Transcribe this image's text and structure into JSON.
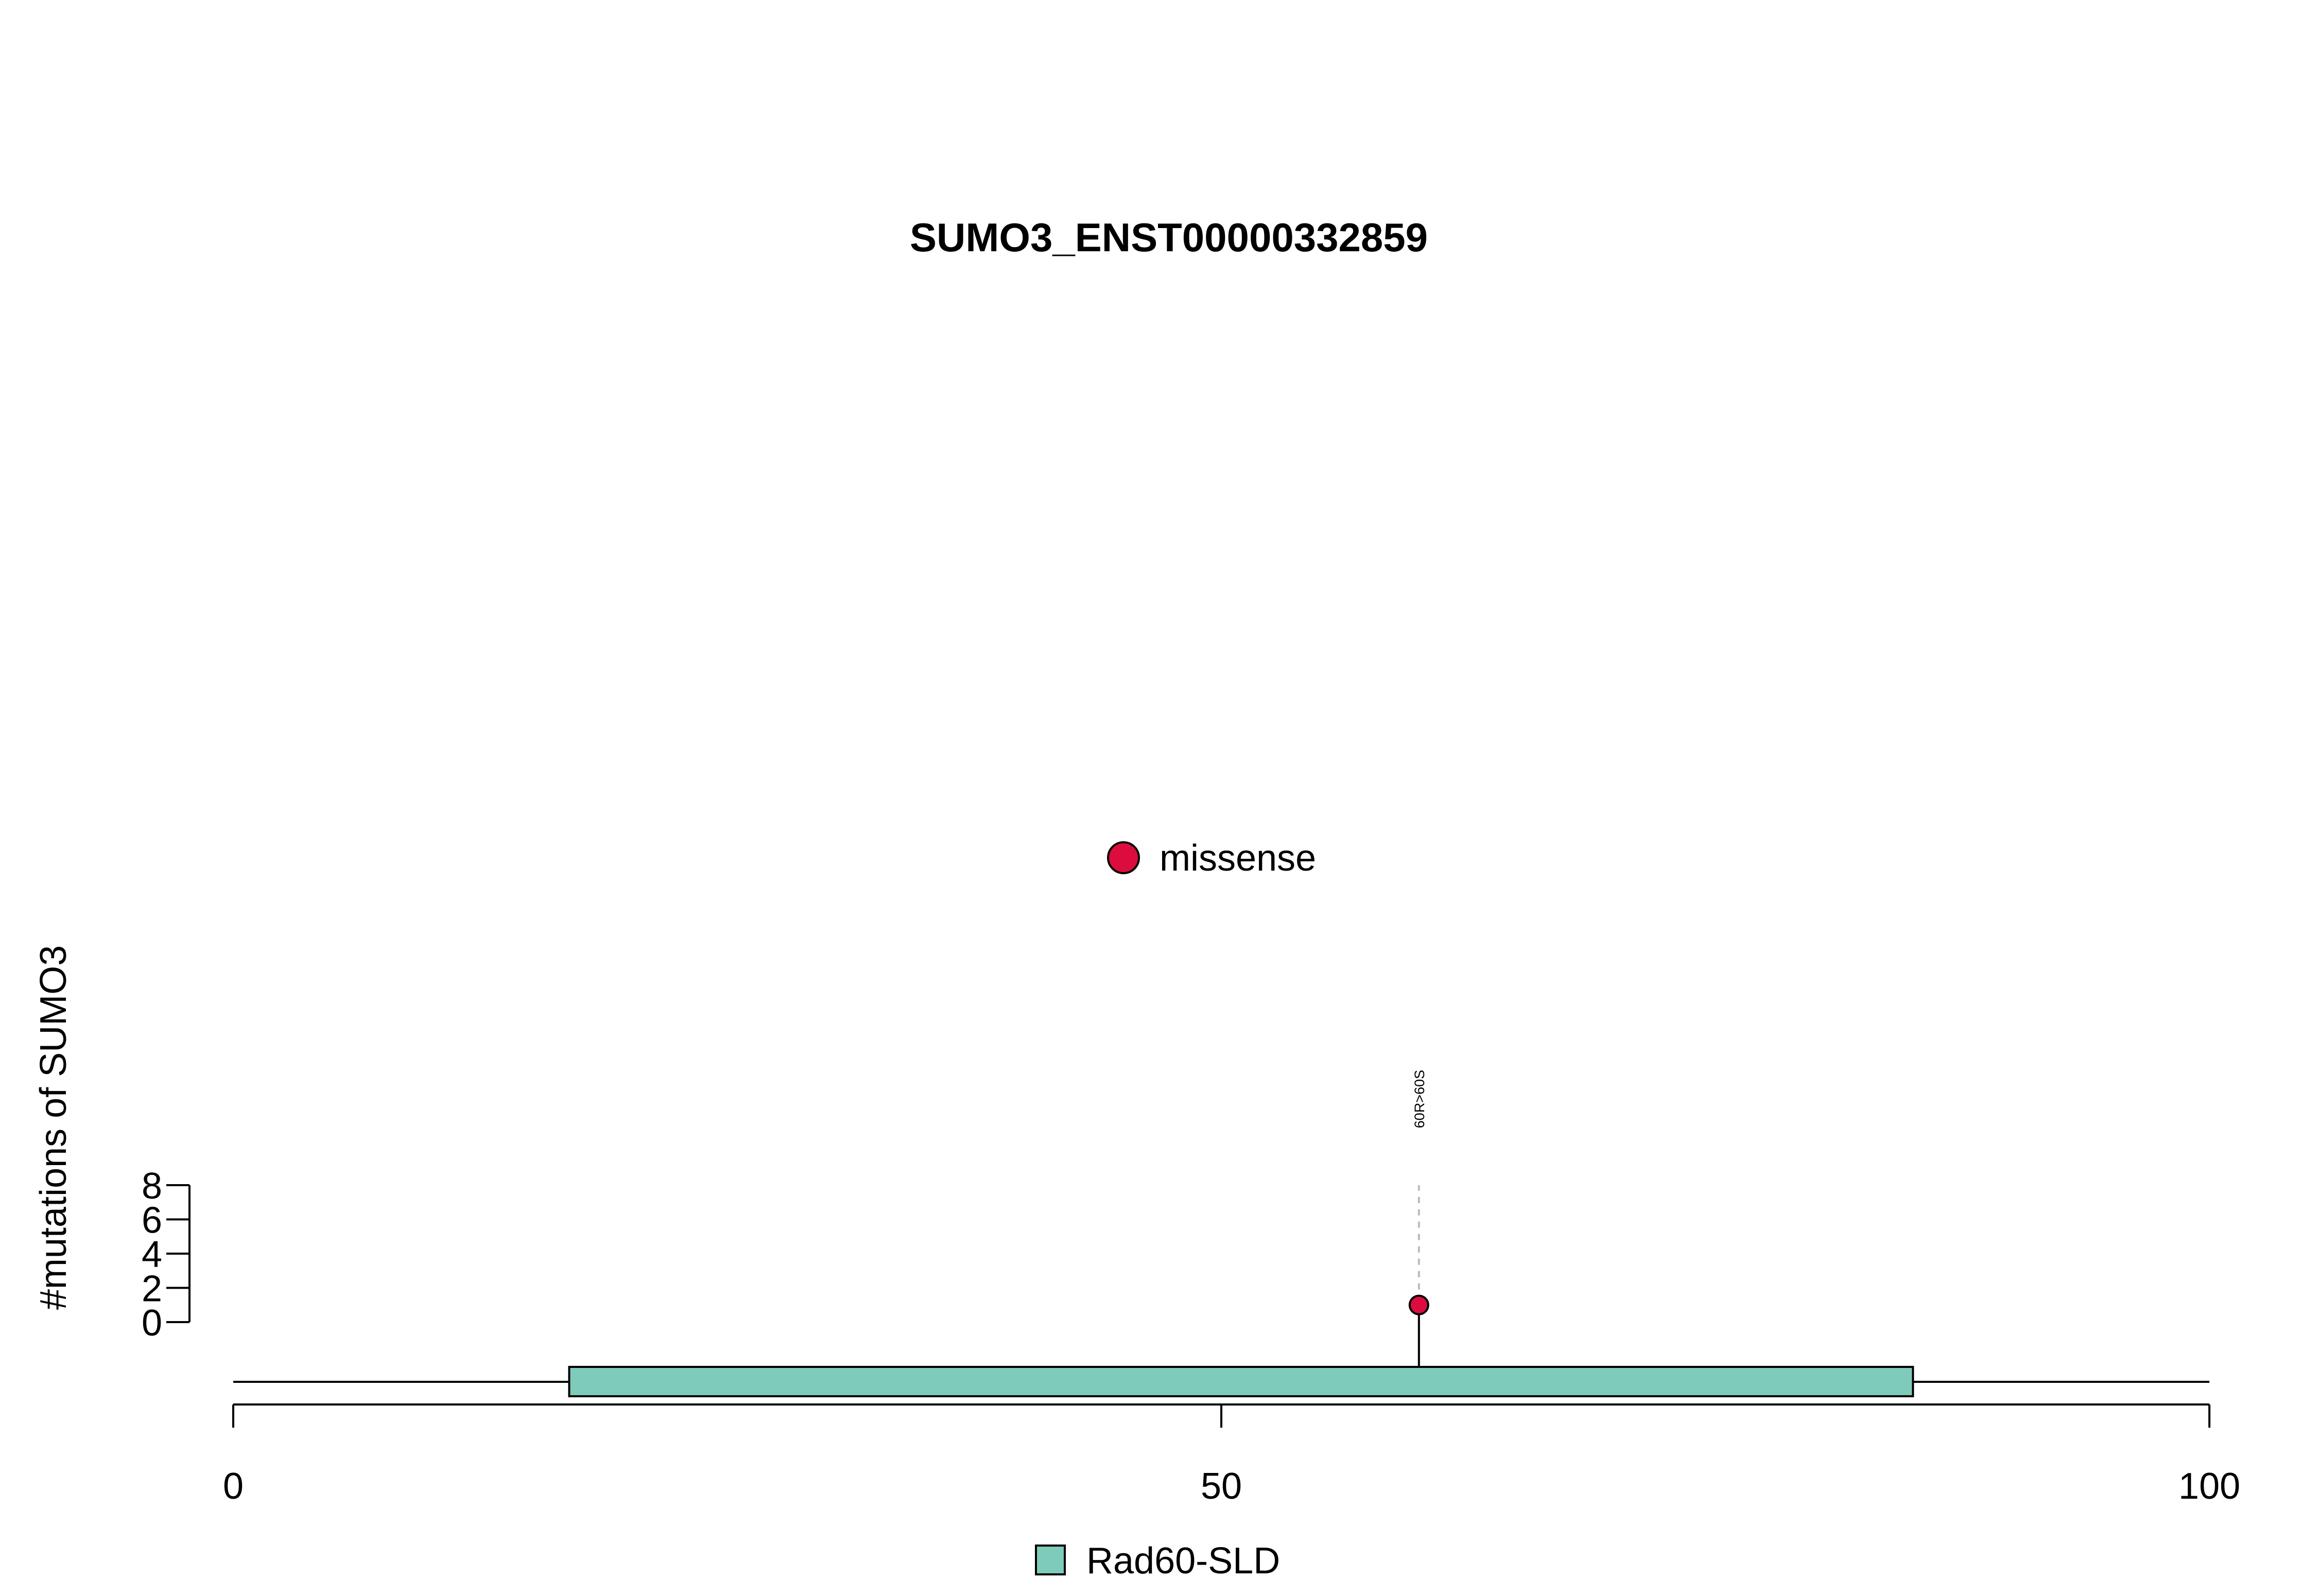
{
  "chart_data": {
    "type": "lollipop",
    "title": "SUMO3_ENST00000332859",
    "ylabel": "#mutations of SUMO3",
    "xlim": [
      0,
      100
    ],
    "x_ticks": [
      0,
      50,
      100
    ],
    "ylim": [
      0,
      8
    ],
    "y_ticks": [
      0,
      2,
      4,
      6,
      8
    ],
    "protein_length": 100,
    "mutation_types": [
      {
        "name": "missense",
        "color": "#dc0d3e"
      }
    ],
    "mutations": [
      {
        "position": 60,
        "count": 1,
        "label": "60R>60S",
        "type": "missense"
      }
    ],
    "domains": [
      {
        "name": "Rad60-SLD",
        "start": 17,
        "end": 85,
        "color": "#7fcbb9"
      }
    ]
  }
}
